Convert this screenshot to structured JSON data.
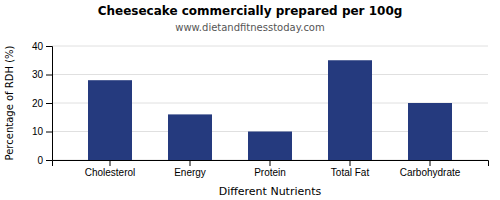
{
  "chart_data": {
    "type": "bar",
    "title": "Cheesecake commercially prepared per 100g",
    "subtitle": "www.dietandfitnesstoday.com",
    "xlabel": "Different Nutrients",
    "ylabel": "Percentage of RDH (%)",
    "categories": [
      "Cholesterol",
      "Energy",
      "Protein",
      "Total Fat",
      "Carbohydrate"
    ],
    "values": [
      28,
      16,
      10,
      35,
      20
    ],
    "color": "#253a7e",
    "ylim": [
      0,
      40
    ],
    "yticks": [
      0,
      10,
      20,
      30,
      40
    ],
    "grid": true
  }
}
